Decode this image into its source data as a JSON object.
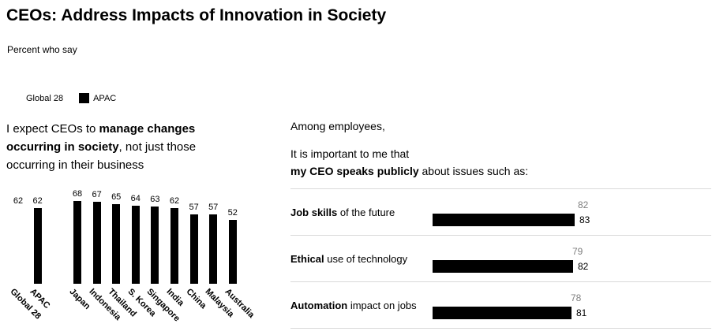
{
  "page": {
    "title": "CEOs: Address Impacts of Innovation in Society",
    "subtitle": "Percent who say"
  },
  "colors": {
    "global_series": "#ffffff",
    "apac_series": "#000000",
    "muted_value_label": "#7f7f7f",
    "separator": "#d9d9d9"
  },
  "legend": {
    "items": [
      {
        "label": "Global 28",
        "color": "#ffffff"
      },
      {
        "label": "APAC",
        "color": "#000000"
      }
    ]
  },
  "left_section": {
    "statement_parts": [
      {
        "text": "I expect CEOs to ",
        "bold": false
      },
      {
        "text": "manage changes occurring in society",
        "bold": true
      },
      {
        "text": ", not just those occurring in their business",
        "bold": false
      }
    ]
  },
  "right_section": {
    "context": "Among employees,",
    "intro_line1": "It is important to me that",
    "intro_line2_parts": [
      {
        "text": "my CEO speaks publicly",
        "bold": true
      },
      {
        "text": " about issues such as:",
        "bold": false
      }
    ]
  },
  "chart_data": [
    {
      "type": "bar",
      "name": "expect-ceos-to-manage-changes",
      "title": "I expect CEOs to manage changes occurring in society, not just those occurring in their business",
      "xlabel": "",
      "ylabel": "Percent who say",
      "ylim": [
        0,
        100
      ],
      "grid": false,
      "categories": [
        "Global 28",
        "APAC",
        "Japan",
        "Indonesia",
        "Thailand",
        "S. Korea",
        "Singapore",
        "India",
        "China",
        "Malaysia",
        "Australia"
      ],
      "values": [
        62,
        62,
        68,
        67,
        65,
        64,
        63,
        62,
        57,
        57,
        52
      ],
      "bar_colors": [
        "#ffffff",
        "#000000",
        "#000000",
        "#000000",
        "#000000",
        "#000000",
        "#000000",
        "#000000",
        "#000000",
        "#000000",
        "#000000"
      ]
    },
    {
      "type": "bar",
      "orientation": "horizontal",
      "name": "my-ceo-speaks-publicly-about-issues",
      "title": "It is important to me that my CEO speaks publicly about issues such as:",
      "xlim": [
        0,
        100
      ],
      "grid": false,
      "legend_position": "top-left-of-page",
      "categories": [
        "Job skills of the future",
        "Ethical use of technology",
        "Automation impact on jobs"
      ],
      "row_label_parts": [
        [
          {
            "text": "Job skills",
            "bold": true
          },
          {
            "text": " of the future",
            "bold": false
          }
        ],
        [
          {
            "text": "Ethical",
            "bold": true
          },
          {
            "text": " use of technology",
            "bold": false
          }
        ],
        [
          {
            "text": "Automation",
            "bold": true
          },
          {
            "text": " impact on jobs",
            "bold": false
          }
        ]
      ],
      "series": [
        {
          "name": "Global 28",
          "color": "#ffffff",
          "label_color": "#7f7f7f",
          "values": [
            82,
            79,
            78
          ]
        },
        {
          "name": "APAC",
          "color": "#000000",
          "label_color": "#000000",
          "values": [
            83,
            82,
            81
          ]
        }
      ]
    }
  ]
}
